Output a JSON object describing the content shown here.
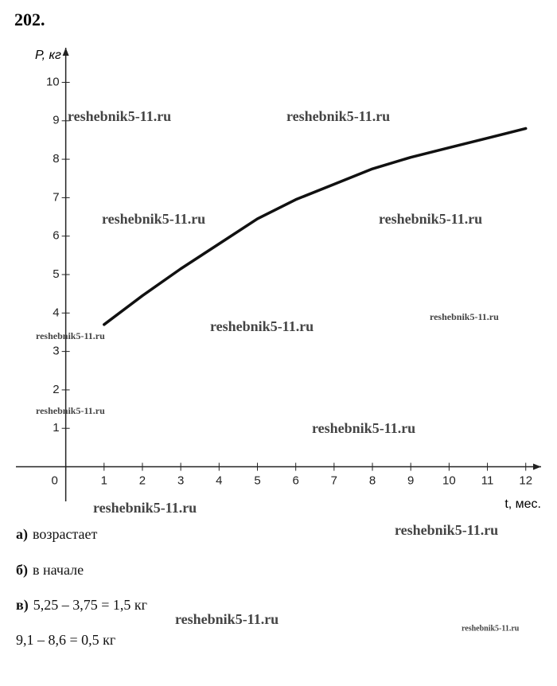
{
  "problem_number": "202.",
  "chart_data": {
    "type": "line",
    "y_label": "P, кг",
    "x_label": "t, мес.",
    "x": [
      1,
      2,
      3,
      4,
      5,
      6,
      7,
      8,
      9,
      10,
      11,
      12
    ],
    "series": [
      {
        "color": "#111111",
        "values": [
          3.7,
          4.45,
          5.15,
          5.8,
          6.45,
          6.95,
          7.35,
          7.75,
          8.05,
          8.3,
          8.55,
          8.8
        ]
      }
    ],
    "xlim": [
      -1.3,
      12.4
    ],
    "ylim": [
      -0.9,
      10.9
    ],
    "xticks": [
      0,
      1,
      2,
      3,
      4,
      5,
      6,
      7,
      8,
      9,
      10,
      11,
      12
    ],
    "yticks": [
      1,
      2,
      3,
      4,
      5,
      6,
      7,
      8,
      9,
      10
    ]
  },
  "answers": [
    {
      "label": "а)",
      "text": "возрастает"
    },
    {
      "label": "б)",
      "text": "в начале"
    },
    {
      "label": "в)",
      "text": "5,25 – 3,75 = 1,5 кг"
    },
    {
      "text": "9,1 – 8,6 = 0,5 кг"
    }
  ],
  "watermarks": [
    "reshebnik5-11.ru",
    "reshebnik5-11.ru",
    "reshebnik5-11.ru",
    "reshebnik5-11.ru",
    "reshebnik5-11.ru",
    "reshebnik5-11.ru",
    "reshebnik5-11.ru",
    "reshebnik5-11.ru",
    "reshebnik5-11.ru",
    "reshebnik5-11.ru",
    "reshebnik5-11.ru",
    "reshebnik5-11.ru",
    "reshebnik5-11.ru"
  ]
}
